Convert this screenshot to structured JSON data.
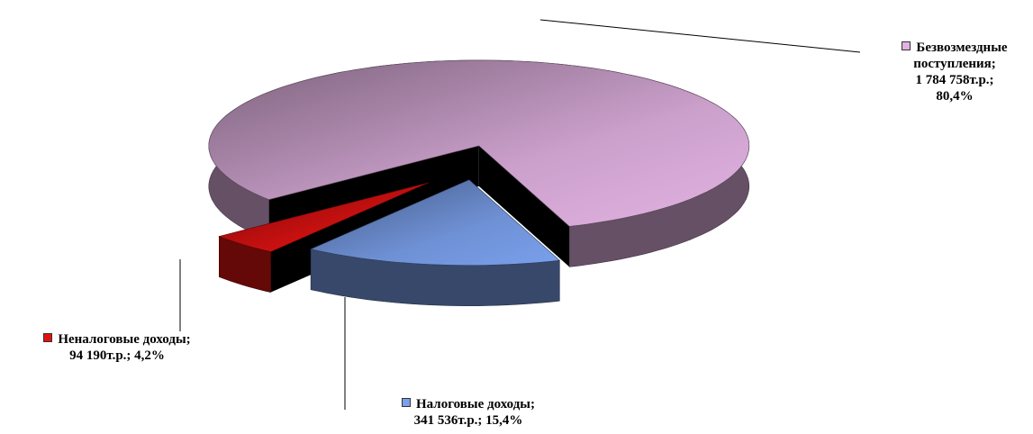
{
  "chart_data": {
    "type": "pie3d",
    "categories": [
      "Безвозмездные поступления;",
      "Налоговые доходы;",
      "Неналоговые доходы;"
    ],
    "values": [
      1784758,
      341536,
      94190
    ],
    "value_labels": [
      "1 784 758т.р.;",
      "341 536т.р.;",
      "94 190т.р.;"
    ],
    "percents": [
      80.4,
      15.4,
      4.2
    ],
    "percent_labels": [
      "80,4%",
      "15,4%",
      "4,2%"
    ],
    "colors": [
      "#e2b2e2",
      "#7aa0ec",
      "#e01212"
    ]
  }
}
